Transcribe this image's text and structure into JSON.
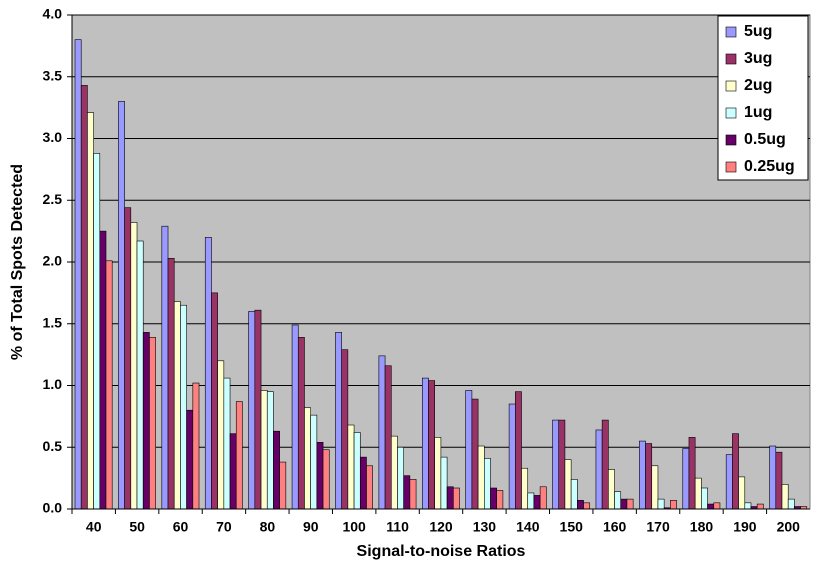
{
  "chart_data": {
    "type": "bar",
    "xlabel": "Signal-to-noise Ratios",
    "ylabel": "% of Total Spots Detected",
    "categories": [
      40,
      50,
      60,
      70,
      80,
      90,
      100,
      110,
      120,
      130,
      140,
      150,
      160,
      170,
      180,
      190,
      200
    ],
    "series": [
      {
        "name": "5ug",
        "color": "#9999ff",
        "values": [
          3.8,
          3.3,
          2.29,
          2.2,
          1.6,
          1.49,
          1.43,
          1.24,
          1.06,
          0.96,
          0.85,
          0.72,
          0.64,
          0.55,
          0.49,
          0.44,
          0.51
        ]
      },
      {
        "name": "3ug",
        "color": "#993366",
        "values": [
          3.43,
          2.44,
          2.03,
          1.75,
          1.61,
          1.39,
          1.29,
          1.16,
          1.04,
          0.89,
          0.95,
          0.72,
          0.72,
          0.53,
          0.58,
          0.61,
          0.46
        ]
      },
      {
        "name": "2ug",
        "color": "#ffffcc",
        "values": [
          3.21,
          2.32,
          1.68,
          1.2,
          0.96,
          0.82,
          0.68,
          0.59,
          0.58,
          0.51,
          0.33,
          0.4,
          0.32,
          0.35,
          0.25,
          0.26,
          0.2
        ]
      },
      {
        "name": "1ug",
        "color": "#ccffff",
        "values": [
          2.88,
          2.17,
          1.65,
          1.06,
          0.95,
          0.76,
          0.62,
          0.5,
          0.42,
          0.41,
          0.13,
          0.24,
          0.14,
          0.08,
          0.17,
          0.05,
          0.08
        ]
      },
      {
        "name": "0.5ug",
        "color": "#660066",
        "values": [
          2.25,
          1.43,
          0.8,
          0.61,
          0.63,
          0.54,
          0.42,
          0.27,
          0.18,
          0.17,
          0.11,
          0.07,
          0.08,
          0.01,
          0.04,
          0.02,
          0.02
        ]
      },
      {
        "name": "0.25ug",
        "color": "#ff8080",
        "values": [
          2.01,
          1.39,
          1.02,
          0.87,
          0.38,
          0.48,
          0.35,
          0.24,
          0.17,
          0.15,
          0.18,
          0.05,
          0.08,
          0.07,
          0.05,
          0.04,
          0.02
        ]
      }
    ],
    "ylim": [
      0,
      4
    ],
    "yticks": [
      {
        "value": 0,
        "label": "0.0"
      },
      0.5,
      {
        "value": 1,
        "label": "1.0"
      },
      1.5,
      {
        "value": 2,
        "label": "2.0"
      },
      2.5,
      {
        "value": 3,
        "label": "3.0"
      },
      3.5,
      {
        "value": 4,
        "label": "4.0"
      }
    ],
    "grid": true,
    "legend": "top-right",
    "background": "#c0c0c0"
  }
}
